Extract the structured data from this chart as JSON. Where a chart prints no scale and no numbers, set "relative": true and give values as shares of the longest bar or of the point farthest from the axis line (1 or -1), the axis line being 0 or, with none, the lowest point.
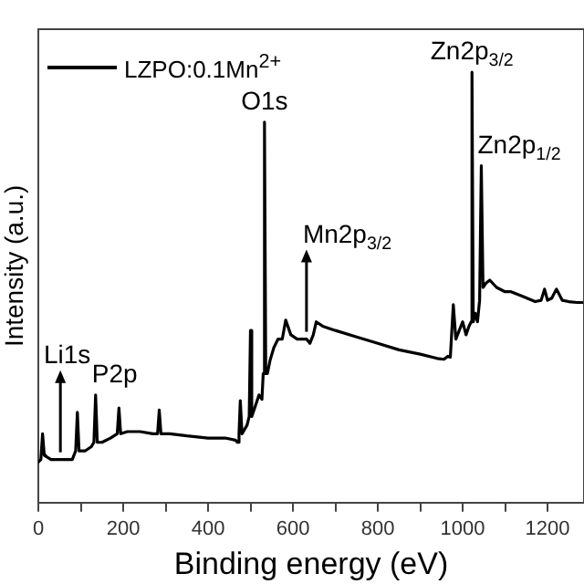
{
  "chart_data": {
    "type": "line",
    "xlabel": "Binding energy (eV)",
    "ylabel": "Intensity (a.u.)",
    "relative": true,
    "legend": "top left",
    "grid": false,
    "marker": "none",
    "line_style": "solid",
    "xlim": [
      0,
      1286
    ],
    "xticks": [
      0,
      {
        "value": 100,
        "label": null
      },
      200,
      {
        "value": 300,
        "label": null
      },
      400,
      {
        "value": 500,
        "label": null
      },
      600,
      {
        "value": 700,
        "label": null
      },
      800,
      {
        "value": 900,
        "label": null
      },
      1000,
      {
        "value": 1100,
        "label": null
      },
      1200
    ],
    "series": [
      {
        "name": "LZPO:0.1Mn$^{2+}$",
        "color": "#000000",
        "x": [
          0,
          6,
          10,
          14,
          17,
          30,
          45,
          52,
          60,
          80,
          88,
          92,
          96,
          110,
          125,
          131,
          135,
          139,
          150,
          170,
          186,
          190,
          194,
          210,
          240,
          270,
          281,
          285,
          289,
          310,
          350,
          400,
          440,
          465,
          469,
          473,
          476,
          480,
          486,
          492,
          497,
          500,
          503,
          510,
          520,
          527,
          530,
          533,
          536,
          540,
          546,
          555,
          565,
          575,
          583,
          595,
          610,
          632,
          640,
          648,
          655,
          670,
          700,
          750,
          800,
          850,
          900,
          940,
          956,
          965,
          971,
          978,
          984,
          992,
          1000,
          1008,
          1015,
          1020,
          1022,
          1025,
          1030,
          1035,
          1040,
          1044,
          1048,
          1055,
          1064,
          1080,
          1100,
          1114,
          1140,
          1171,
          1185,
          1193,
          1200,
          1210,
          1221,
          1235,
          1250,
          1270,
          1286
        ],
        "values": [
          0.094,
          0.1,
          0.16,
          0.11,
          0.108,
          0.1,
          0.1,
          0.1,
          0.1,
          0.1,
          0.12,
          0.21,
          0.12,
          0.12,
          0.13,
          0.14,
          0.25,
          0.14,
          0.14,
          0.15,
          0.16,
          0.22,
          0.16,
          0.165,
          0.165,
          0.16,
          0.16,
          0.215,
          0.16,
          0.16,
          0.155,
          0.15,
          0.15,
          0.145,
          0.14,
          0.16,
          0.237,
          0.16,
          0.17,
          0.18,
          0.2,
          0.4,
          0.2,
          0.22,
          0.25,
          0.24,
          0.3,
          0.884,
          0.3,
          0.3,
          0.33,
          0.36,
          0.38,
          0.38,
          0.424,
          0.39,
          0.38,
          0.38,
          0.37,
          0.39,
          0.42,
          0.41,
          0.4,
          0.385,
          0.37,
          0.355,
          0.345,
          0.335,
          0.333,
          0.34,
          0.338,
          0.46,
          0.38,
          0.4,
          0.42,
          0.39,
          0.41,
          0.42,
          1.0,
          0.42,
          0.44,
          0.42,
          0.47,
          0.783,
          0.5,
          0.51,
          0.517,
          0.5,
          0.49,
          0.49,
          0.48,
          0.467,
          0.47,
          0.496,
          0.47,
          0.475,
          0.496,
          0.47,
          0.467,
          0.465,
          0.465
        ]
      }
    ],
    "annotations": [
      {
        "text": "Li1s",
        "x": 52,
        "y": 0.1
      },
      {
        "text": "P2p",
        "x": 135,
        "y": 0.25
      },
      {
        "text": "O1s",
        "x": 533,
        "y": 0.884
      },
      {
        "text": "Mn2p$_{3/2}$",
        "x": 632,
        "y": 0.38
      },
      {
        "text": "Zn2p$_{3/2}$",
        "x": 1022,
        "y": 1.0
      },
      {
        "text": "Zn2p$_{1/2}$",
        "x": 1044,
        "y": 0.783
      }
    ]
  }
}
